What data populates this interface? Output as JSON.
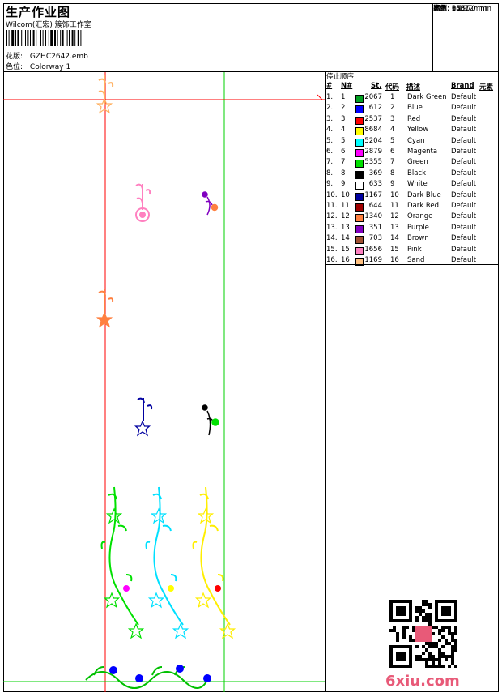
{
  "header": {
    "title": "生产作业图",
    "company": "Wilcom(汇宏) 簇饰工作室",
    "design_label": "花版:",
    "design_file": "GZHC2642.emb",
    "color_label": "色位:",
    "colorway": "Colorway 1"
  },
  "stats": [
    {
      "label": "针数:",
      "value": "35372"
    },
    {
      "label": "颜色:",
      "value": "16"
    },
    {
      "label": "高度:",
      "value": "1361.0 mm"
    },
    {
      "label": "宽度:",
      "value": "348.7 mm"
    },
    {
      "label": "比例:",
      "value": "0.19"
    }
  ],
  "stop_sequence": {
    "caption": "停止顺序:",
    "headers": {
      "idx": "#",
      "num": "N#",
      "st": "St.",
      "code": "代码",
      "desc": "描述",
      "brand": "Brand",
      "elem": "元素"
    },
    "rows": [
      {
        "idx": "1.",
        "num": "1",
        "color": "#00a020",
        "st": "2067",
        "code": "1",
        "desc": "Dark Green",
        "brand": "Default"
      },
      {
        "idx": "2.",
        "num": "2",
        "color": "#0000ff",
        "st": "612",
        "code": "2",
        "desc": "Blue",
        "brand": "Default"
      },
      {
        "idx": "3.",
        "num": "3",
        "color": "#ff0000",
        "st": "2537",
        "code": "3",
        "desc": "Red",
        "brand": "Default"
      },
      {
        "idx": "4.",
        "num": "4",
        "color": "#ffff00",
        "st": "8684",
        "code": "4",
        "desc": "Yellow",
        "brand": "Default"
      },
      {
        "idx": "5.",
        "num": "5",
        "color": "#00ffff",
        "st": "5204",
        "code": "5",
        "desc": "Cyan",
        "brand": "Default"
      },
      {
        "idx": "6.",
        "num": "6",
        "color": "#ff00ff",
        "st": "2879",
        "code": "6",
        "desc": "Magenta",
        "brand": "Default"
      },
      {
        "idx": "7.",
        "num": "7",
        "color": "#00e000",
        "st": "5355",
        "code": "7",
        "desc": "Green",
        "brand": "Default"
      },
      {
        "idx": "8.",
        "num": "8",
        "color": "#000000",
        "st": "369",
        "code": "8",
        "desc": "Black",
        "brand": "Default"
      },
      {
        "idx": "9.",
        "num": "9",
        "color": "#ffffff",
        "st": "633",
        "code": "9",
        "desc": "White",
        "brand": "Default"
      },
      {
        "idx": "10.",
        "num": "10",
        "color": "#0000a0",
        "st": "1167",
        "code": "10",
        "desc": "Dark Blue",
        "brand": "Default"
      },
      {
        "idx": "11.",
        "num": "11",
        "color": "#a00000",
        "st": "644",
        "code": "11",
        "desc": "Dark Red",
        "brand": "Default"
      },
      {
        "idx": "12.",
        "num": "12",
        "color": "#ff8040",
        "st": "1340",
        "code": "12",
        "desc": "Orange",
        "brand": "Default"
      },
      {
        "idx": "13.",
        "num": "13",
        "color": "#8000c0",
        "st": "351",
        "code": "13",
        "desc": "Purple",
        "brand": "Default"
      },
      {
        "idx": "14.",
        "num": "14",
        "color": "#a05030",
        "st": "703",
        "code": "14",
        "desc": "Brown",
        "brand": "Default"
      },
      {
        "idx": "15.",
        "num": "15",
        "color": "#ff80c0",
        "st": "1656",
        "code": "15",
        "desc": "Pink",
        "brand": "Default"
      },
      {
        "idx": "16.",
        "num": "16",
        "color": "#ffc080",
        "st": "1169",
        "code": "16",
        "desc": "Sand",
        "brand": "Default"
      }
    ]
  },
  "watermark": "6xiu.com"
}
